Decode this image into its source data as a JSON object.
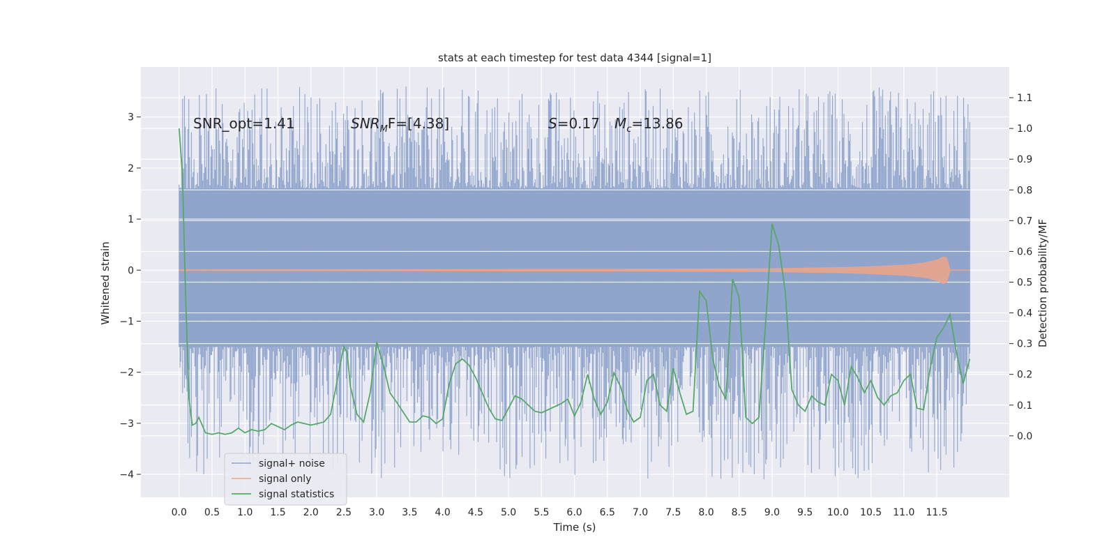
{
  "chart_data": {
    "type": "line",
    "title": "stats at each timestep for test data 4344 [signal=1]",
    "xlabel": "Time (s)",
    "ylabel": "Whitened strain",
    "y2label": "Detection probability/MF",
    "xlim": [
      -0.58,
      12.6
    ],
    "ylim": [
      -4.45,
      3.98
    ],
    "y2lim": [
      -0.2,
      1.2
    ],
    "xticks": [
      0.0,
      0.5,
      1.0,
      1.5,
      2.0,
      2.5,
      3.0,
      3.5,
      4.0,
      4.5,
      5.0,
      5.5,
      6.0,
      6.5,
      7.0,
      7.5,
      8.0,
      8.5,
      9.0,
      9.5,
      10.0,
      10.5,
      11.0,
      11.5
    ],
    "xtick_labels": [
      "0.0",
      "0.5",
      "1.0",
      "1.5",
      "2.0",
      "2.5",
      "3.0",
      "3.5",
      "4.0",
      "4.5",
      "5.0",
      "5.5",
      "6.0",
      "6.5",
      "7.0",
      "7.5",
      "8.0",
      "8.5",
      "9.0",
      "9.5",
      "10.0",
      "10.5",
      "11.0",
      "11.5"
    ],
    "yticks": [
      -4,
      -3,
      -2,
      -1,
      0,
      1,
      2,
      3
    ],
    "ytick_labels": [
      "−4",
      "−3",
      "−2",
      "−1",
      "0",
      "1",
      "2",
      "3"
    ],
    "y2ticks": [
      0.0,
      0.1,
      0.2,
      0.3,
      0.4,
      0.5,
      0.6,
      0.7,
      0.8,
      0.9,
      1.0,
      1.1
    ],
    "y2tick_labels": [
      "0.0",
      "0.1",
      "0.2",
      "0.3",
      "0.4",
      "0.5",
      "0.6",
      "0.7",
      "0.8",
      "0.9",
      "1.0",
      "1.1"
    ],
    "grid": true,
    "legend_position": "bottom-left",
    "annotations": {
      "snr_opt": "SNR_opt=1.41",
      "snr_mf_base": "SNR",
      "snr_mf_sub": "M",
      "snr_mf_rest": "F=[4.38]",
      "s_label": "S",
      "s_value": "=0.17",
      "mc_base": "M",
      "mc_sub": "c",
      "mc_value": "=13.86"
    },
    "series": [
      {
        "name": "signal+ noise",
        "color": "#8fa4cc",
        "axis": "left",
        "x_range": [
          0.0,
          12.0
        ],
        "band_envelope": {
          "t": [
            0.0,
            1.0,
            2.0,
            3.0,
            4.0,
            5.0,
            6.0,
            7.0,
            8.0,
            9.0,
            10.0,
            11.0,
            12.0
          ],
          "upper": [
            1.6,
            1.6,
            1.6,
            1.6,
            1.6,
            1.6,
            1.6,
            1.6,
            1.6,
            1.6,
            1.6,
            1.6,
            1.6
          ],
          "lower": [
            -1.5,
            -1.5,
            -1.5,
            -1.5,
            -1.5,
            -1.5,
            -1.5,
            -1.5,
            -1.5,
            -1.5,
            -1.5,
            -1.5,
            -1.5
          ]
        },
        "max_abs_strain": [
          3.6,
          -4.1
        ]
      },
      {
        "name": "signal only",
        "color": "#e8a58c",
        "axis": "left",
        "chirp_envelope": {
          "t": [
            0.0,
            6.0,
            9.0,
            10.0,
            10.5,
            11.0,
            11.3,
            11.5,
            11.6,
            11.65,
            11.7
          ],
          "amp": [
            0.01,
            0.015,
            0.03,
            0.05,
            0.07,
            0.1,
            0.14,
            0.2,
            0.26,
            0.24,
            0.0
          ]
        }
      },
      {
        "name": "signal statistics",
        "color": "#55a868",
        "axis": "right",
        "x": [
          0.0,
          0.05,
          0.1,
          0.15,
          0.2,
          0.25,
          0.3,
          0.4,
          0.5,
          0.6,
          0.7,
          0.8,
          0.9,
          1.0,
          1.1,
          1.2,
          1.3,
          1.4,
          1.5,
          1.6,
          1.7,
          1.8,
          1.9,
          2.0,
          2.1,
          2.2,
          2.3,
          2.4,
          2.5,
          2.55,
          2.6,
          2.7,
          2.8,
          2.9,
          3.0,
          3.1,
          3.2,
          3.3,
          3.5,
          3.6,
          3.7,
          3.8,
          3.9,
          4.0,
          4.1,
          4.2,
          4.3,
          4.4,
          4.5,
          4.6,
          4.7,
          4.8,
          4.9,
          5.0,
          5.1,
          5.2,
          5.3,
          5.4,
          5.5,
          5.6,
          5.7,
          5.8,
          5.9,
          6.0,
          6.1,
          6.2,
          6.3,
          6.4,
          6.5,
          6.6,
          6.7,
          6.8,
          6.9,
          7.0,
          7.1,
          7.2,
          7.3,
          7.4,
          7.5,
          7.6,
          7.7,
          7.8,
          7.9,
          8.0,
          8.1,
          8.2,
          8.3,
          8.4,
          8.5,
          8.6,
          8.7,
          8.8,
          8.9,
          9.0,
          9.1,
          9.2,
          9.3,
          9.4,
          9.5,
          9.6,
          9.7,
          9.8,
          9.9,
          10.0,
          10.1,
          10.2,
          10.3,
          10.4,
          10.5,
          10.6,
          10.7,
          10.8,
          10.9,
          11.0,
          11.1,
          11.2,
          11.3,
          11.4,
          11.5,
          11.6,
          11.7,
          11.8,
          11.9,
          12.0
        ],
        "y": [
          1.0,
          0.85,
          0.45,
          0.12,
          0.035,
          0.04,
          0.06,
          0.01,
          0.005,
          0.01,
          0.005,
          0.01,
          0.025,
          0.01,
          0.02,
          0.015,
          0.02,
          0.04,
          0.03,
          0.02,
          0.035,
          0.045,
          0.04,
          0.035,
          0.04,
          0.045,
          0.07,
          0.18,
          0.29,
          0.27,
          0.16,
          0.07,
          0.045,
          0.14,
          0.305,
          0.23,
          0.14,
          0.11,
          0.045,
          0.045,
          0.065,
          0.06,
          0.04,
          0.055,
          0.17,
          0.235,
          0.25,
          0.23,
          0.19,
          0.14,
          0.09,
          0.055,
          0.05,
          0.09,
          0.13,
          0.12,
          0.1,
          0.08,
          0.075,
          0.085,
          0.095,
          0.105,
          0.12,
          0.065,
          0.11,
          0.2,
          0.12,
          0.07,
          0.11,
          0.205,
          0.16,
          0.085,
          0.045,
          0.06,
          0.18,
          0.2,
          0.1,
          0.08,
          0.22,
          0.14,
          0.07,
          0.08,
          0.47,
          0.44,
          0.25,
          0.16,
          0.12,
          0.51,
          0.45,
          0.06,
          0.04,
          0.06,
          0.36,
          0.69,
          0.62,
          0.47,
          0.15,
          0.1,
          0.08,
          0.13,
          0.11,
          0.1,
          0.2,
          0.18,
          0.1,
          0.225,
          0.19,
          0.14,
          0.18,
          0.125,
          0.1,
          0.13,
          0.14,
          0.18,
          0.2,
          0.09,
          0.085,
          0.22,
          0.32,
          0.35,
          0.395,
          0.27,
          0.17,
          0.25
        ]
      }
    ]
  }
}
